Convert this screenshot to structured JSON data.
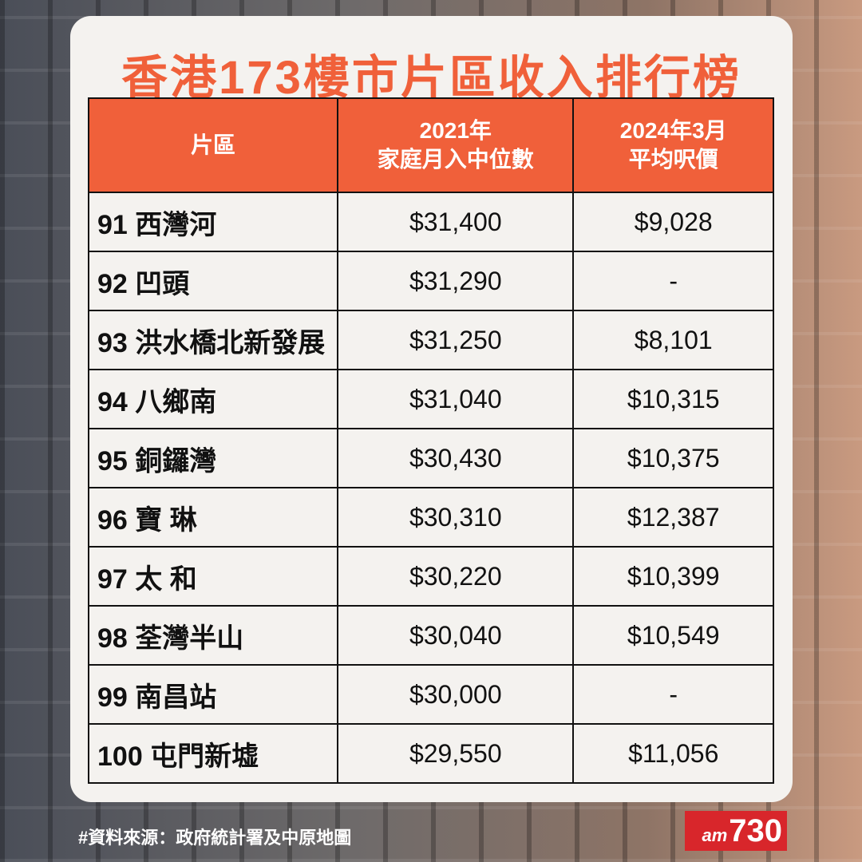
{
  "title": "香港173樓市片區收入排行榜",
  "table": {
    "header": [
      [
        "片區"
      ],
      [
        "2021年",
        "家庭月入中位數"
      ],
      [
        "2024年3月",
        "平均呎價"
      ]
    ],
    "rows": [
      [
        "91 西灣河",
        "$31,400",
        "$9,028"
      ],
      [
        "92 凹頭",
        "$31,290",
        "-"
      ],
      [
        "93 洪水橋北新發展",
        "$31,250",
        "$8,101"
      ],
      [
        "94 八鄉南",
        "$31,040",
        "$10,315"
      ],
      [
        "95 銅鑼灣",
        "$30,430",
        "$10,375"
      ],
      [
        "96 寶 琳",
        "$30,310",
        "$12,387"
      ],
      [
        "97 太 和",
        "$30,220",
        "$10,399"
      ],
      [
        "98 荃灣半山",
        "$30,040",
        "$10,549"
      ],
      [
        "99 南昌站",
        "$30,000",
        "-"
      ],
      [
        "100 屯門新墟",
        "$29,550",
        "$11,056"
      ]
    ]
  },
  "source": "#資料來源：政府統計署及中原地圖",
  "logo": {
    "prefix": "am",
    "number": "730"
  }
}
